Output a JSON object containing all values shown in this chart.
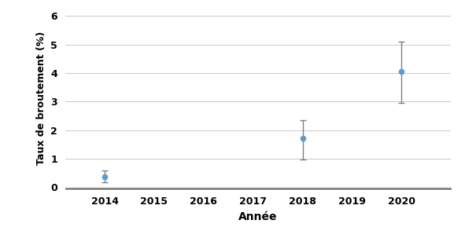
{
  "years": [
    2014,
    2018,
    2020
  ],
  "values": [
    0.38,
    1.72,
    4.05
  ],
  "yerr_lower": [
    0.2,
    0.75,
    1.1
  ],
  "yerr_upper": [
    0.22,
    0.62,
    1.05
  ],
  "xlim": [
    2013.2,
    2021.0
  ],
  "ylim": [
    -0.05,
    6.3
  ],
  "xticks": [
    2014,
    2015,
    2016,
    2017,
    2018,
    2019,
    2020
  ],
  "yticks": [
    0,
    1,
    2,
    3,
    4,
    5,
    6
  ],
  "xlabel": "Année",
  "ylabel": "Taux de broutement (%)",
  "marker_color": "#5B9BD5",
  "errorbar_color": "#808080",
  "marker_size": 6,
  "capsize": 3,
  "grid_color": "#C8C8C8",
  "background_color": "#FFFFFF"
}
